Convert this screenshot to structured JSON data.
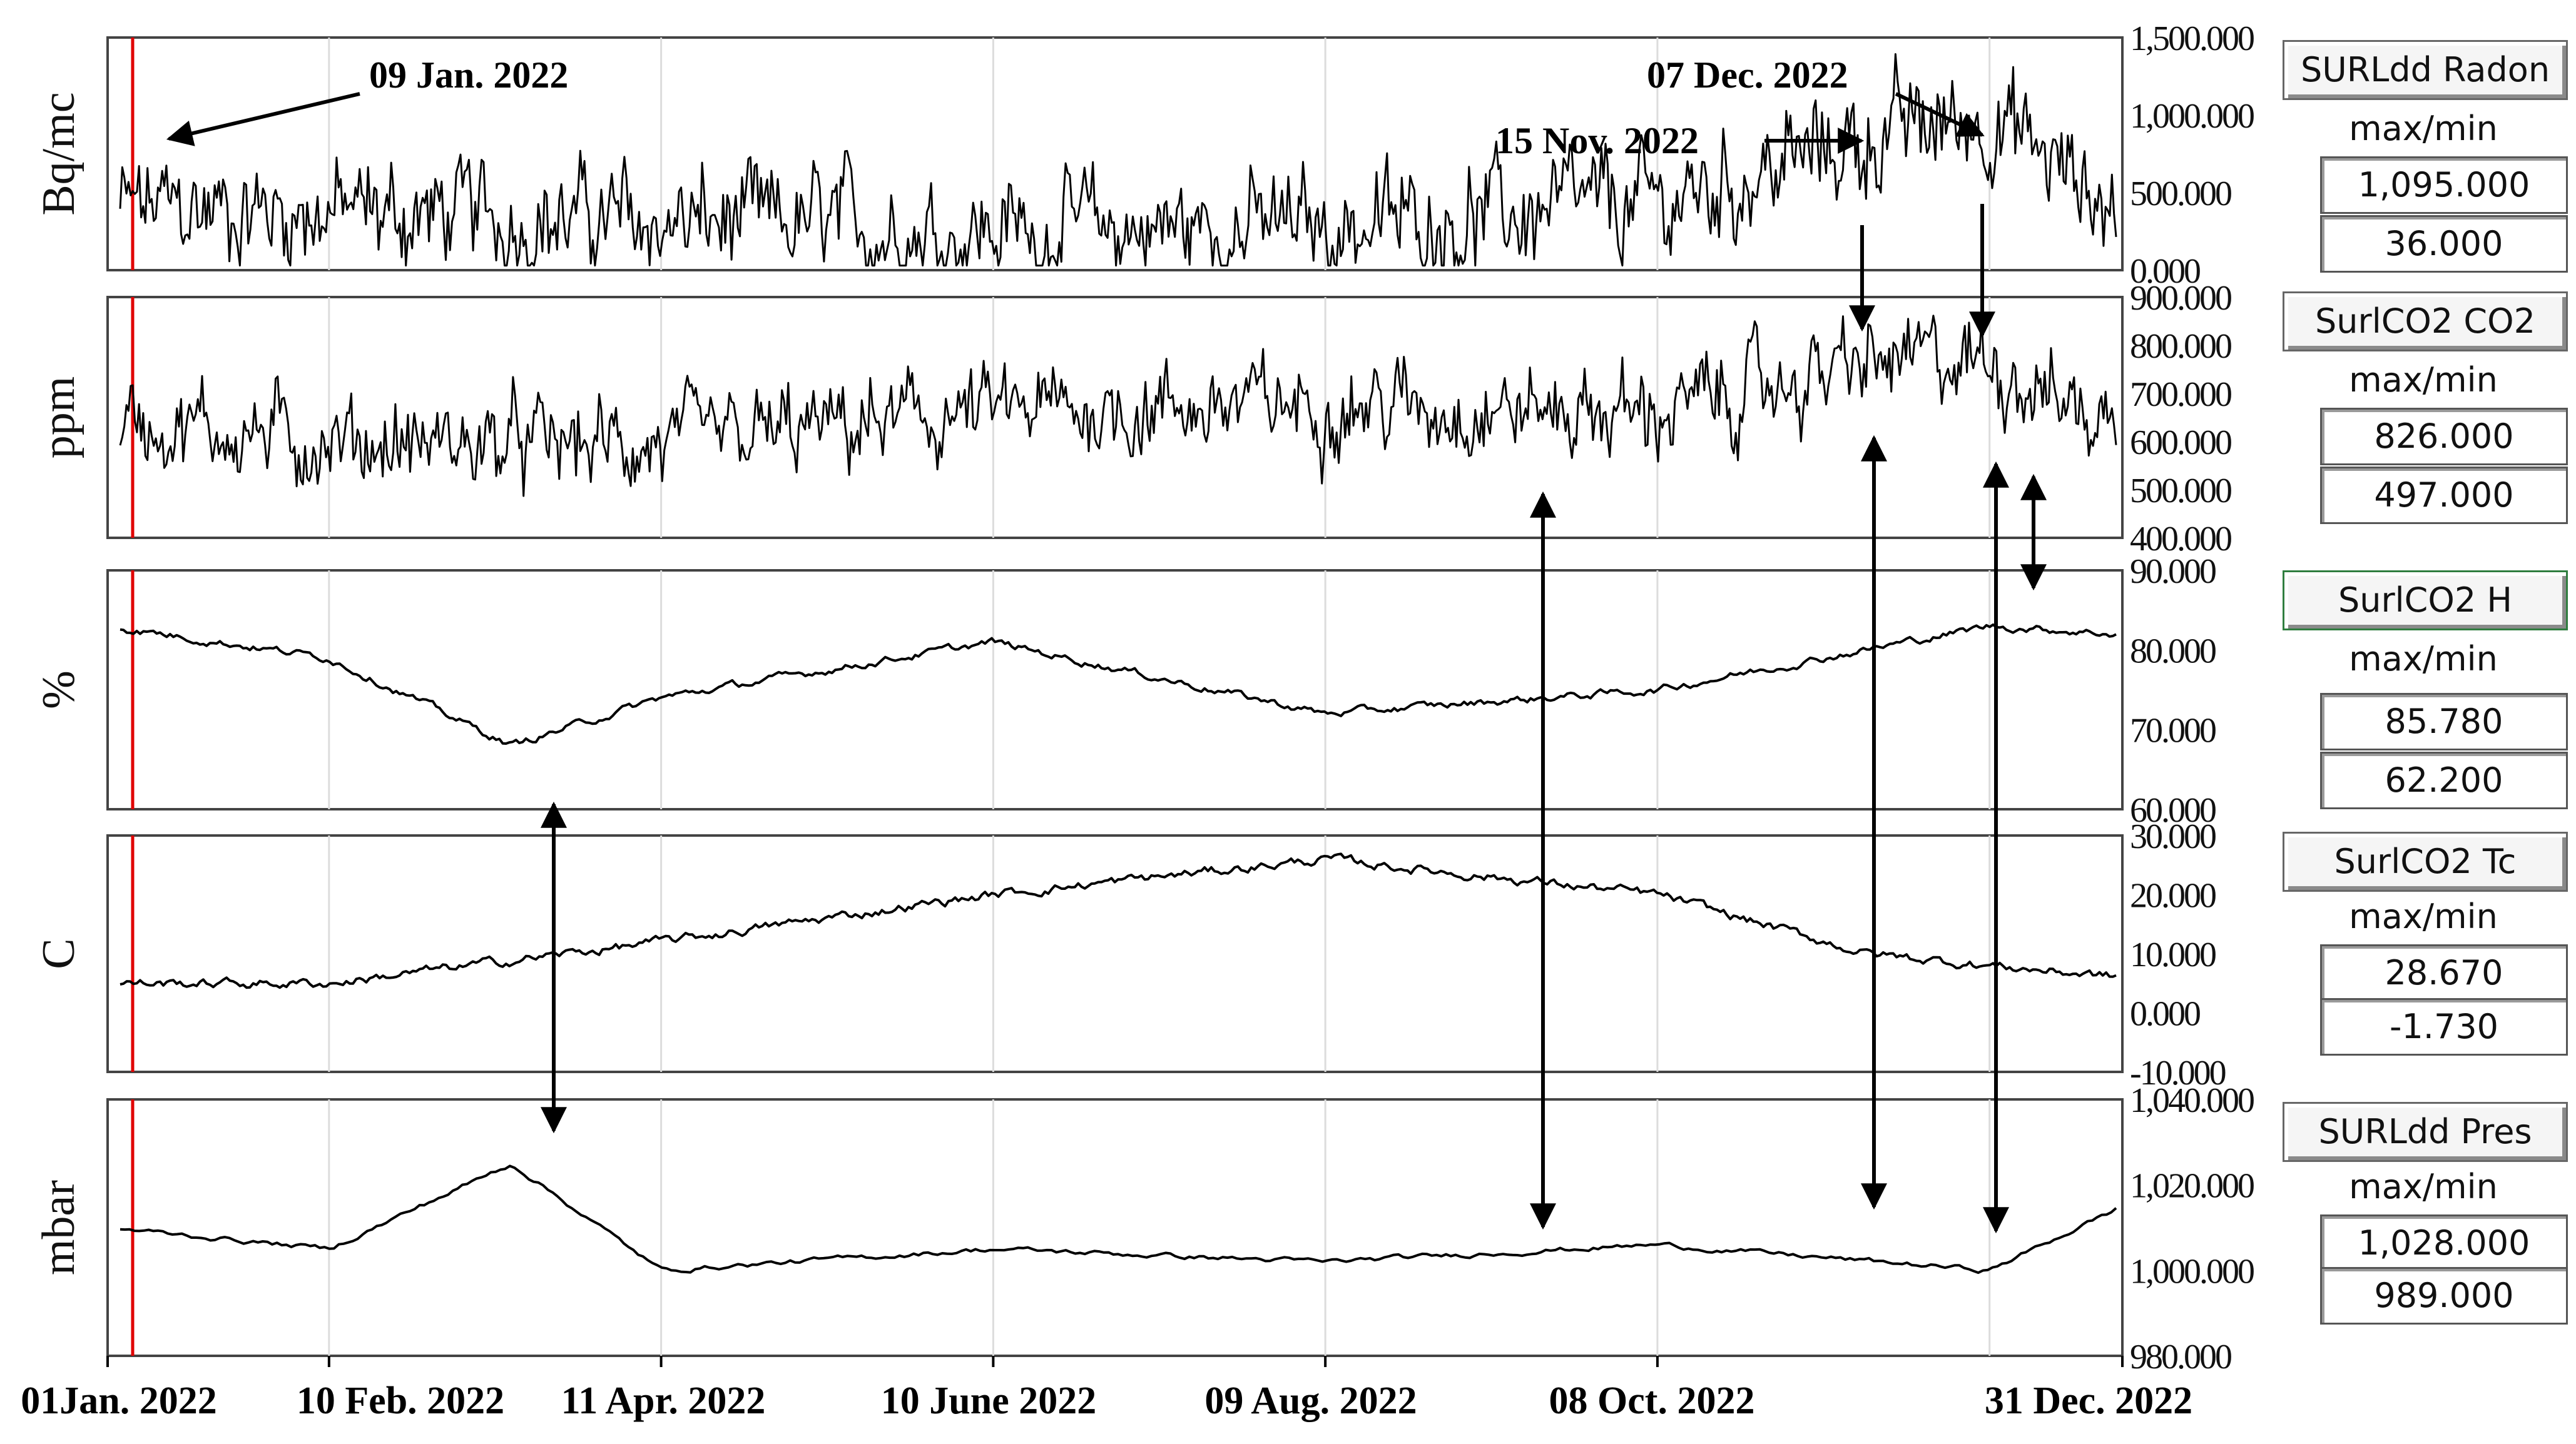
{
  "panels": [
    {
      "ylabel": "Bq/mc",
      "ticks": [
        "1,500.000",
        "1,000.000",
        "500.000",
        "0.000"
      ],
      "ylim": [
        0,
        1500
      ],
      "caption": "SURLdd Radon",
      "maxmin_label": "max/min",
      "max": "1,095.000",
      "min": "36.000"
    },
    {
      "ylabel": "ppm",
      "ticks": [
        "900.000",
        "800.000",
        "700.000",
        "600.000",
        "500.000",
        "400.000"
      ],
      "ylim": [
        400,
        900
      ],
      "caption": "SurlCO2 CO2",
      "maxmin_label": "max/min",
      "max": "826.000",
      "min": "497.000"
    },
    {
      "ylabel": "%",
      "ticks": [
        "90.000",
        "80.000",
        "70.000",
        "60.000"
      ],
      "ylim": [
        60,
        90
      ],
      "caption": "SurlCO2 H",
      "maxmin_label": "max/min",
      "max": "85.780",
      "min": "62.200"
    },
    {
      "ylabel": "C",
      "ticks": [
        "30.000",
        "20.000",
        "10.000",
        "0.000",
        "-10.000"
      ],
      "ylim": [
        -10,
        30
      ],
      "caption": "SurlCO2 Tc",
      "maxmin_label": "max/min",
      "max": "28.670",
      "min": "-1.730"
    },
    {
      "ylabel": "mbar",
      "ticks": [
        "1,040.000",
        "1,020.000",
        "1,000.000",
        "980.000"
      ],
      "ylim": [
        980,
        1040
      ],
      "caption": "SURLdd Pres",
      "maxmin_label": "max/min",
      "max": "1,028.000",
      "min": "989.000"
    }
  ],
  "x_ticks": [
    "01Jan. 2022",
    "10 Feb. 2022",
    "11 Apr. 2022",
    "10 June 2022",
    "09 Aug. 2022",
    "08 Oct. 2022",
    "31 Dec. 2022"
  ],
  "annotations": [
    "09 Jan. 2022",
    "07 Dec. 2022",
    "15 Nov. 2022"
  ],
  "colors": {
    "trace": "#000000",
    "marker": "#e00000",
    "grid": "#dcdcdc",
    "frame": "#444444"
  },
  "chart_data": [
    {
      "type": "line",
      "ylabel": "Bq/mc",
      "ylim": [
        0,
        1500
      ],
      "x": [
        "2022-01-01",
        "2022-02-10",
        "2022-04-11",
        "2022-06-10",
        "2022-08-09",
        "2022-10-08",
        "2022-11-15",
        "2022-12-07",
        "2022-12-31"
      ],
      "values": [
        400,
        380,
        300,
        260,
        280,
        420,
        850,
        1000,
        350
      ]
    },
    {
      "type": "line",
      "ylabel": "ppm",
      "ylim": [
        400,
        900
      ],
      "x": [
        "2022-01-01",
        "2022-02-10",
        "2022-04-11",
        "2022-06-10",
        "2022-08-09",
        "2022-10-08",
        "2022-11-15",
        "2022-12-07",
        "2022-12-31"
      ],
      "values": [
        650,
        600,
        590,
        660,
        680,
        660,
        760,
        770,
        620
      ]
    },
    {
      "type": "line",
      "ylabel": "%",
      "ylim": [
        60,
        90
      ],
      "x": [
        "2022-01-01",
        "2022-02-10",
        "2022-03-15",
        "2022-04-11",
        "2022-06-10",
        "2022-08-09",
        "2022-10-08",
        "2022-12-07",
        "2022-12-31"
      ],
      "values": [
        83,
        79,
        68,
        74,
        81,
        72,
        75,
        83,
        82
      ]
    },
    {
      "type": "line",
      "ylabel": "C",
      "ylim": [
        -10,
        30
      ],
      "x": [
        "2022-01-01",
        "2022-02-10",
        "2022-04-11",
        "2022-06-10",
        "2022-08-09",
        "2022-10-08",
        "2022-11-15",
        "2022-12-07",
        "2022-12-31"
      ],
      "values": [
        5,
        5,
        12,
        20,
        26,
        20,
        10,
        8,
        6
      ]
    },
    {
      "type": "line",
      "ylabel": "mbar",
      "ylim": [
        980,
        1040
      ],
      "x": [
        "2022-01-01",
        "2022-02-10",
        "2022-03-15",
        "2022-04-11",
        "2022-06-10",
        "2022-08-09",
        "2022-10-08",
        "2022-12-07",
        "2022-12-31"
      ],
      "values": [
        1010,
        1005,
        1025,
        1000,
        1005,
        1002,
        1006,
        1000,
        1015
      ]
    }
  ]
}
